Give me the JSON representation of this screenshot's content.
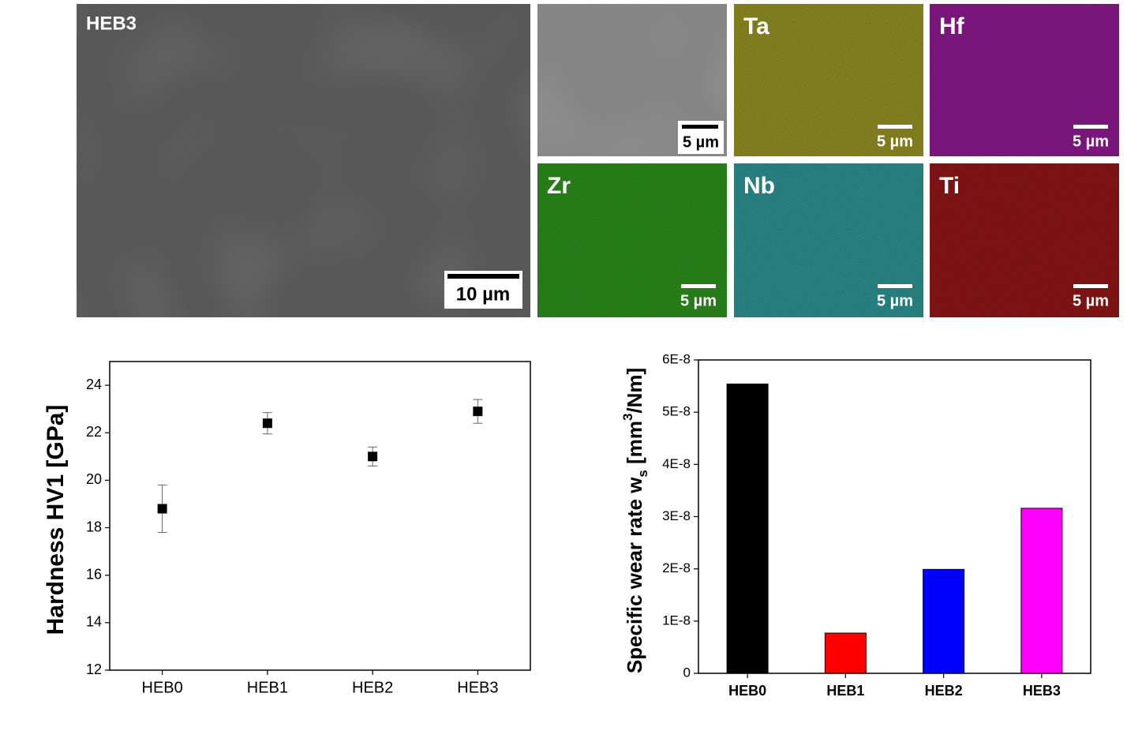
{
  "images": [
    {
      "label": "HEB3",
      "scale": "10 µm",
      "color": "#5c5c5c"
    },
    {
      "scale": "5 µm",
      "color": "#8c8c8c"
    },
    {
      "label": "Ta",
      "scale": "5 µm",
      "color": "#8e8a22"
    },
    {
      "label": "Hf",
      "scale": "5 µm",
      "color": "#87198a"
    },
    {
      "label": "Zr",
      "scale": "5 µm",
      "color": "#2b8a1c"
    },
    {
      "label": "Nb",
      "scale": "5 µm",
      "color": "#2c8c8c"
    },
    {
      "label": "Ti",
      "scale": "5 µm",
      "color": "#8a1616"
    }
  ],
  "chart_data": [
    {
      "type": "scatter",
      "ylabel": [
        {
          "text": "Hardness HV1 [GPa]"
        }
      ],
      "categories": [
        "HEB0",
        "HEB1",
        "HEB2",
        "HEB3"
      ],
      "values": [
        18.8,
        22.4,
        21.0,
        22.9
      ],
      "errors": [
        1.0,
        0.45,
        0.4,
        0.5
      ],
      "color": "#000000",
      "ylim": [
        12,
        25
      ],
      "yticks": [
        12,
        14,
        16,
        18,
        20,
        22,
        24
      ]
    },
    {
      "type": "bar",
      "ylabel": [
        {
          "text": "Specific wear rate w"
        },
        {
          "text": "s",
          "style": "sub"
        },
        {
          "text": " [mm"
        },
        {
          "text": "3",
          "style": "sup"
        },
        {
          "text": "/Nm]"
        }
      ],
      "categories": [
        "HEB0",
        "HEB1",
        "HEB2",
        "HEB3"
      ],
      "values": [
        5.54e-08,
        7.7e-09,
        1.99e-08,
        3.16e-08
      ],
      "colors": [
        "#000000",
        "#ff0000",
        "#0000ff",
        "#ff00ff"
      ],
      "ylim": [
        0,
        6e-08
      ],
      "yticks": [
        0,
        {
          "value": 1e-08,
          "label": "1E-8"
        },
        {
          "value": 2e-08,
          "label": "2E-8"
        },
        {
          "value": 3e-08,
          "label": "3E-8"
        },
        {
          "value": 4e-08,
          "label": "4E-8"
        },
        {
          "value": 5e-08,
          "label": "5E-8"
        },
        {
          "value": 6e-08,
          "label": "6E-8"
        }
      ]
    }
  ]
}
